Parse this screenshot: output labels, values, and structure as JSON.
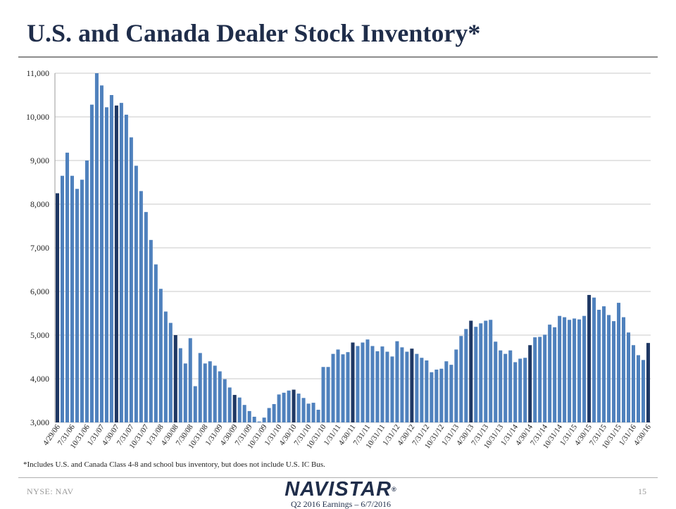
{
  "title": "U.S. and Canada Dealer Stock Inventory*",
  "footnote": "*Includes U.S. and Canada Class 4-8 and school bus inventory, but does not include U.S. IC Bus.",
  "footer": {
    "ticker": "NYSE: NAV",
    "logo": "NAVISTAR",
    "logo_mark": "®",
    "subtitle": "Q2 2016 Earnings – 6/7/2016",
    "page": "15"
  },
  "colors": {
    "bar": "#4f81bd",
    "bar_highlight": "#1f3864",
    "grid": "#c8c8c8",
    "title": "#1f2d4a"
  },
  "chart_data": {
    "type": "bar",
    "title": "",
    "xlabel": "",
    "ylabel": "",
    "ylim": [
      3000,
      11000
    ],
    "yticks": [
      3000,
      4000,
      5000,
      6000,
      7000,
      8000,
      9000,
      10000,
      11000
    ],
    "ytick_labels": [
      "3,000",
      "4,000",
      "5,000",
      "6,000",
      "7,000",
      "8,000",
      "9,000",
      "10,000",
      "11,000"
    ],
    "grid": true,
    "legend": "none",
    "x_labels": [
      "4/29/06",
      "7/31/06",
      "10/31/06",
      "1/31/07",
      "4/30/07",
      "7/31/07",
      "10/31/07",
      "1/31/08",
      "4/30/08",
      "7/30/08",
      "10/31/08",
      "1/31/09",
      "4/30/09",
      "7/31/09",
      "10/31/09",
      "1/31/10",
      "4/30/10",
      "7/31/10",
      "10/31/10",
      "1/31/11",
      "4/30/11",
      "7/31/11",
      "10/31/11",
      "1/31/12",
      "4/30/12",
      "7/31/12",
      "10/31/12",
      "1/31/13",
      "4/30/13",
      "7/31/13",
      "10/31/13",
      "1/31/14",
      "4/30/14",
      "7/31/14",
      "10/31/14",
      "1/31/15",
      "4/30/15",
      "7/31/15",
      "10/31/15",
      "1/31/16",
      "4/30/16"
    ],
    "values": [
      8250,
      8650,
      9180,
      8650,
      8350,
      8560,
      9000,
      10280,
      11000,
      10720,
      10220,
      10500,
      10260,
      10320,
      10050,
      9530,
      8880,
      8300,
      7820,
      7180,
      6620,
      6060,
      5540,
      5280,
      5000,
      4700,
      4350,
      4930,
      3830,
      4590,
      4350,
      4400,
      4300,
      4170,
      3990,
      3800,
      3630,
      3570,
      3400,
      3260,
      3130,
      3020,
      3110,
      3330,
      3420,
      3640,
      3680,
      3730,
      3750,
      3660,
      3560,
      3430,
      3450,
      3290,
      4270,
      4270,
      4570,
      4670,
      4560,
      4610,
      4830,
      4750,
      4830,
      4900,
      4750,
      4630,
      4740,
      4620,
      4510,
      4860,
      4720,
      4620,
      4690,
      4570,
      4480,
      4420,
      4150,
      4210,
      4230,
      4400,
      4320,
      4670,
      4980,
      5140,
      5330,
      5190,
      5270,
      5330,
      5350,
      4850,
      4650,
      4570,
      4650,
      4380,
      4460,
      4480,
      4770,
      4950,
      4960,
      5010,
      5240,
      5180,
      5440,
      5410,
      5350,
      5380,
      5360,
      5440,
      5920,
      5860,
      5580,
      5660,
      5460,
      5320,
      5740,
      5410,
      5060,
      4770,
      4540,
      4430,
      4820
    ],
    "highlight_indices": [
      0,
      12,
      24,
      36,
      48,
      60,
      72,
      84,
      96,
      108,
      120
    ]
  }
}
